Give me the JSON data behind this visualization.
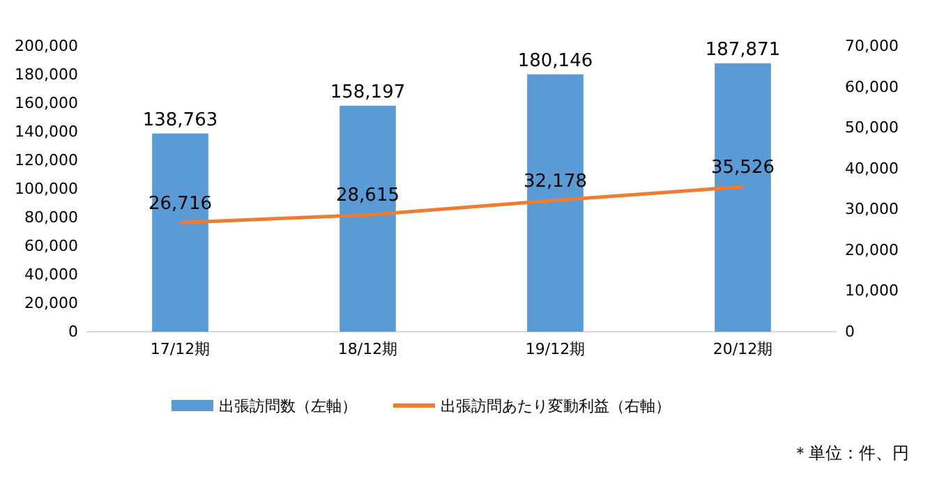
{
  "chart_data": {
    "type": "bar",
    "categories": [
      "17/12期",
      "18/12期",
      "19/12期",
      "20/12期"
    ],
    "series": [
      {
        "name": "出張訪問数（左軸）",
        "color": "#5b9bd5",
        "values": [
          138763,
          158197,
          180146,
          187871
        ],
        "value_labels": [
          "138,763",
          "158,197",
          "180,146",
          "187,871"
        ]
      },
      {
        "name": "出張訪問あたり変動利益（右軸）",
        "type": "line",
        "axis": "y2",
        "color": "#ed7d31",
        "values": [
          26716,
          28615,
          32178,
          35526
        ],
        "value_labels": [
          "26,716",
          "28,615",
          "32,178",
          "35,526"
        ]
      }
    ],
    "ylim": [
      0,
      200000
    ],
    "yticks": [
      0,
      {
        "value": 20000,
        "label": "20,000"
      },
      {
        "value": 40000,
        "label": "40,000"
      },
      {
        "value": 60000,
        "label": "60,000"
      },
      {
        "value": 80000,
        "label": "80,000"
      },
      {
        "value": 100000,
        "label": "100,000"
      },
      {
        "value": 120000,
        "label": "120,000"
      },
      {
        "value": 140000,
        "label": "140,000"
      },
      {
        "value": 160000,
        "label": "160,000"
      },
      {
        "value": 180000,
        "label": "180,000"
      },
      {
        "value": 200000,
        "label": "200,000"
      }
    ],
    "y2lim": [
      0,
      70000
    ],
    "y2ticks": [
      0,
      {
        "value": 10000,
        "label": "10,000"
      },
      {
        "value": 20000,
        "label": "20,000"
      },
      {
        "value": 30000,
        "label": "30,000"
      },
      {
        "value": 40000,
        "label": "40,000"
      },
      {
        "value": 50000,
        "label": "50,000"
      },
      {
        "value": 60000,
        "label": "60,000"
      },
      {
        "value": 70000,
        "label": "70,000"
      }
    ],
    "legend": "bottom",
    "marker": "none",
    "annotations": [
      "＊単位：件、円"
    ]
  }
}
